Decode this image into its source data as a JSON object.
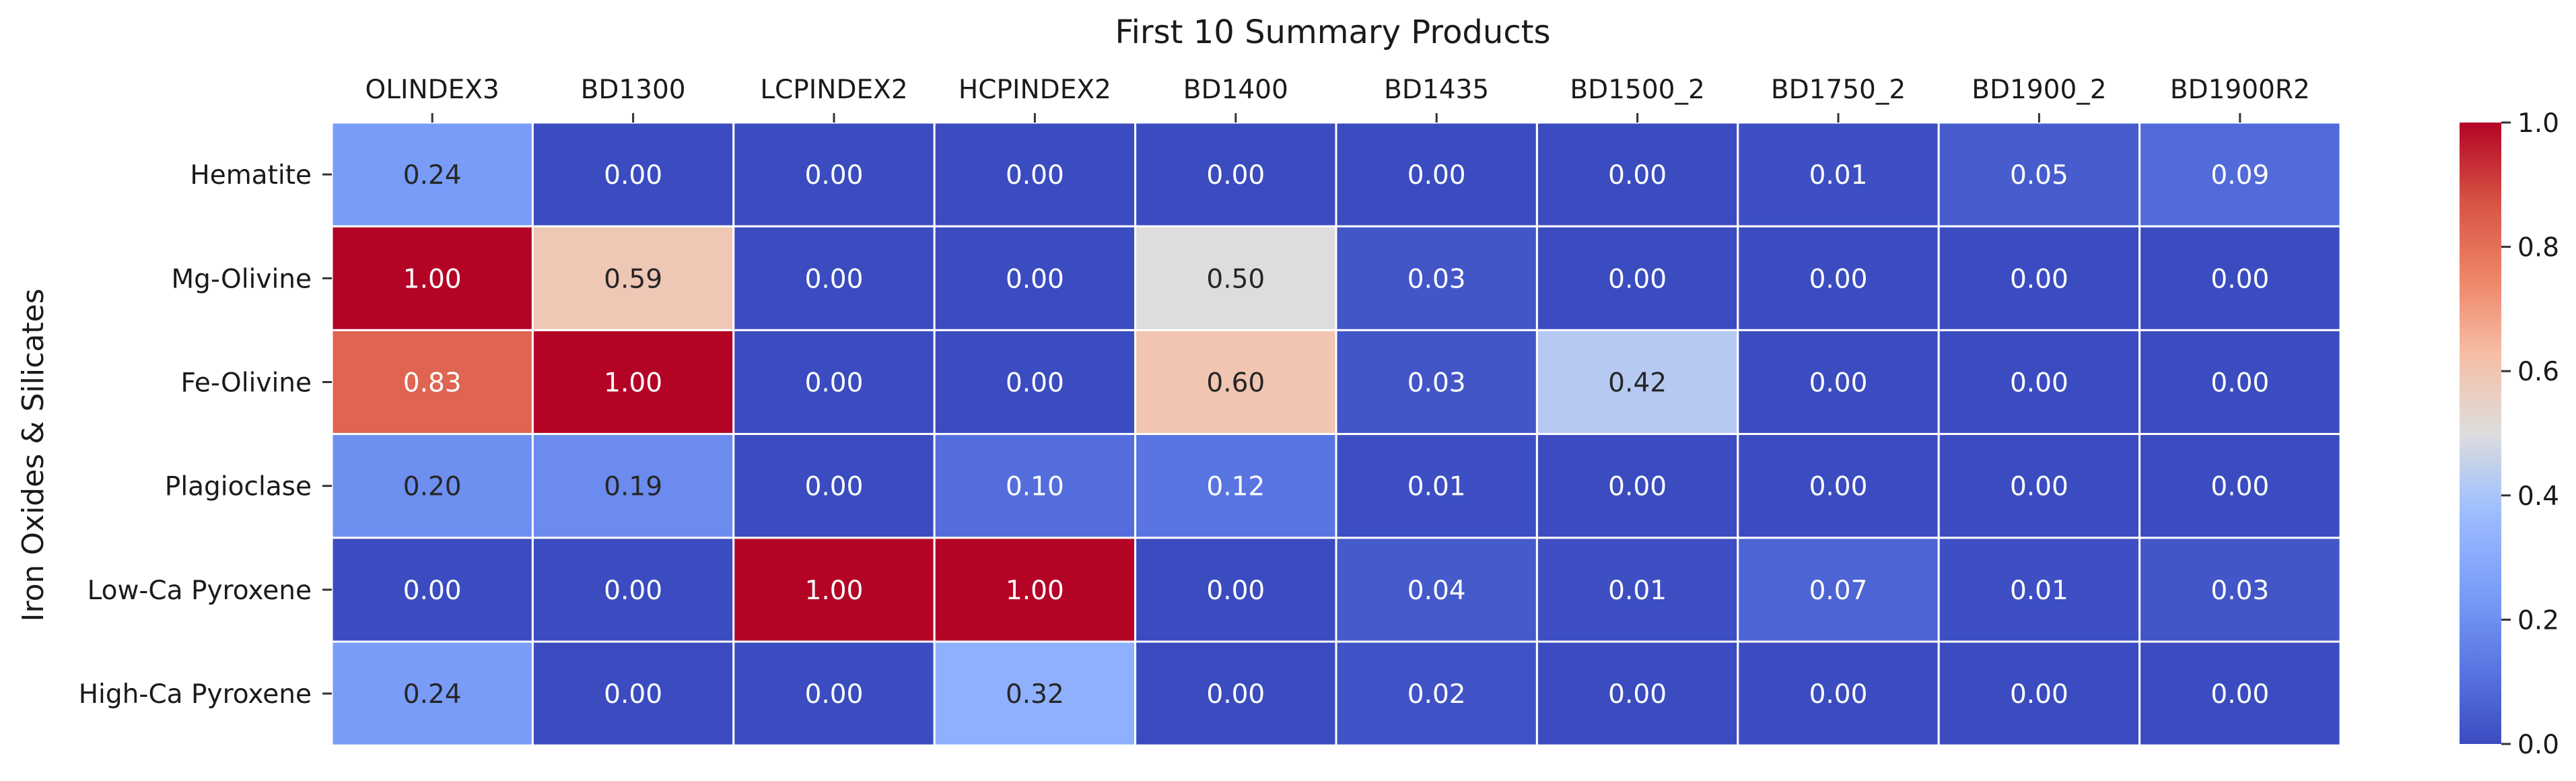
{
  "chart_data": {
    "type": "heatmap",
    "title": "First 10 Summary Products",
    "xlabel": "",
    "ylabel": "Iron Oxides & Silicates",
    "columns": [
      "OLINDEX3",
      "BD1300",
      "LCPINDEX2",
      "HCPINDEX2",
      "BD1400",
      "BD1435",
      "BD1500_2",
      "BD1750_2",
      "BD1900_2",
      "BD1900R2"
    ],
    "rows": [
      "Hematite",
      "Mg-Olivine",
      "Fe-Olivine",
      "Plagioclase",
      "Low-Ca Pyroxene",
      "High-Ca Pyroxene"
    ],
    "values": [
      [
        0.24,
        0.0,
        0.0,
        0.0,
        0.0,
        0.0,
        0.0,
        0.01,
        0.05,
        0.09
      ],
      [
        1.0,
        0.59,
        0.0,
        0.0,
        0.5,
        0.03,
        0.0,
        0.0,
        0.0,
        0.0
      ],
      [
        0.83,
        1.0,
        0.0,
        0.0,
        0.6,
        0.03,
        0.42,
        0.0,
        0.0,
        0.0
      ],
      [
        0.2,
        0.19,
        0.0,
        0.1,
        0.12,
        0.01,
        0.0,
        0.0,
        0.0,
        0.0
      ],
      [
        0.0,
        0.0,
        1.0,
        1.0,
        0.0,
        0.04,
        0.01,
        0.07,
        0.01,
        0.03
      ],
      [
        0.24,
        0.0,
        0.0,
        0.32,
        0.0,
        0.02,
        0.0,
        0.0,
        0.0,
        0.0
      ]
    ],
    "value_format": "2 decimals",
    "colormap": "coolwarm",
    "vmin": 0.0,
    "vmax": 1.0,
    "colorbar_ticks": [
      "0.0",
      "0.2",
      "0.4",
      "0.6",
      "0.8",
      "1.0"
    ],
    "x_tick_position": "top",
    "grid": false,
    "cell_border_color": "#ffffff"
  }
}
